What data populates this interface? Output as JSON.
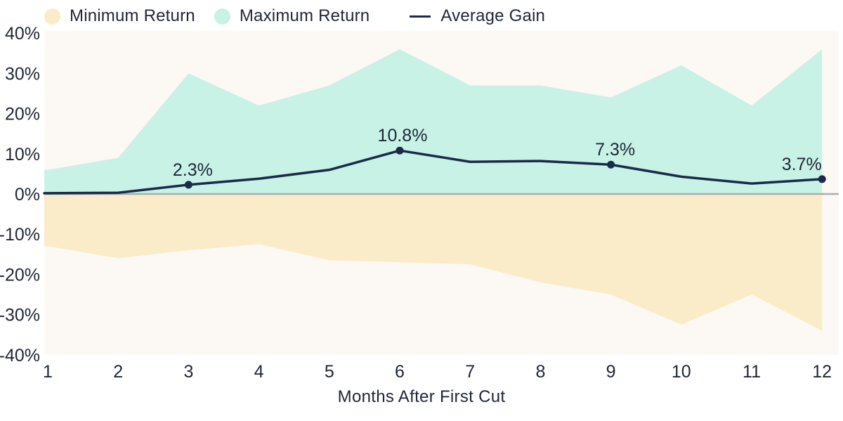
{
  "legend": {
    "items": [
      {
        "label": "Minimum Return",
        "swatch": "circle",
        "color": "#fbecc9"
      },
      {
        "label": "Maximum Return",
        "swatch": "circle",
        "color": "#c8f2e6"
      },
      {
        "label": "Average Gain",
        "swatch": "line",
        "color": "#1b2a4a"
      }
    ]
  },
  "chart_data": {
    "type": "area",
    "title": "",
    "xlabel": "Months After First Cut",
    "ylabel": "",
    "x": [
      1,
      2,
      3,
      4,
      5,
      6,
      7,
      8,
      9,
      10,
      11,
      12
    ],
    "xtick_labels": [
      "1",
      "2",
      "3",
      "4",
      "5",
      "6",
      "7",
      "8",
      "9",
      "10",
      "11",
      "12"
    ],
    "ylim": [
      -40,
      40
    ],
    "ytick_values": [
      40,
      30,
      20,
      10,
      0,
      -10,
      -20,
      -30,
      -40
    ],
    "ytick_labels": [
      "40%",
      "30%",
      "20%",
      "10%",
      "0%",
      "-10%",
      "-20%",
      "-30%",
      "-40%"
    ],
    "grid": false,
    "legend_position": "top-left",
    "series": [
      {
        "name": "Minimum Return",
        "type": "area",
        "color": "#fbecc9",
        "values": [
          -13,
          -16,
          -14,
          -12.5,
          -16.5,
          -17,
          -17.5,
          -22,
          -25,
          -32.5,
          -25,
          -34
        ]
      },
      {
        "name": "Maximum Return",
        "type": "area",
        "color": "#c8f2e6",
        "values": [
          6,
          9,
          30,
          22,
          27,
          36,
          27,
          27,
          24,
          32,
          22,
          36
        ]
      },
      {
        "name": "Average Gain",
        "type": "line",
        "color": "#1b2a4a",
        "values": [
          0.2,
          0.3,
          2.3,
          3.8,
          6,
          10.8,
          8,
          8.2,
          7.3,
          4.3,
          2.6,
          3.7
        ]
      }
    ],
    "annotations": [
      {
        "x": 3,
        "y": 2.3,
        "label": "2.3%",
        "dx": 6
      },
      {
        "x": 6,
        "y": 10.8,
        "label": "10.8%",
        "dx": 4
      },
      {
        "x": 9,
        "y": 7.3,
        "label": "7.3%",
        "dx": 6
      },
      {
        "x": 12,
        "y": 3.7,
        "label": "3.7%",
        "dx": -29
      }
    ],
    "zero_line": true,
    "zero_line_color": "#a8aeae",
    "plot_bg": "#fcf9f4",
    "text_color": "#1e2636"
  }
}
